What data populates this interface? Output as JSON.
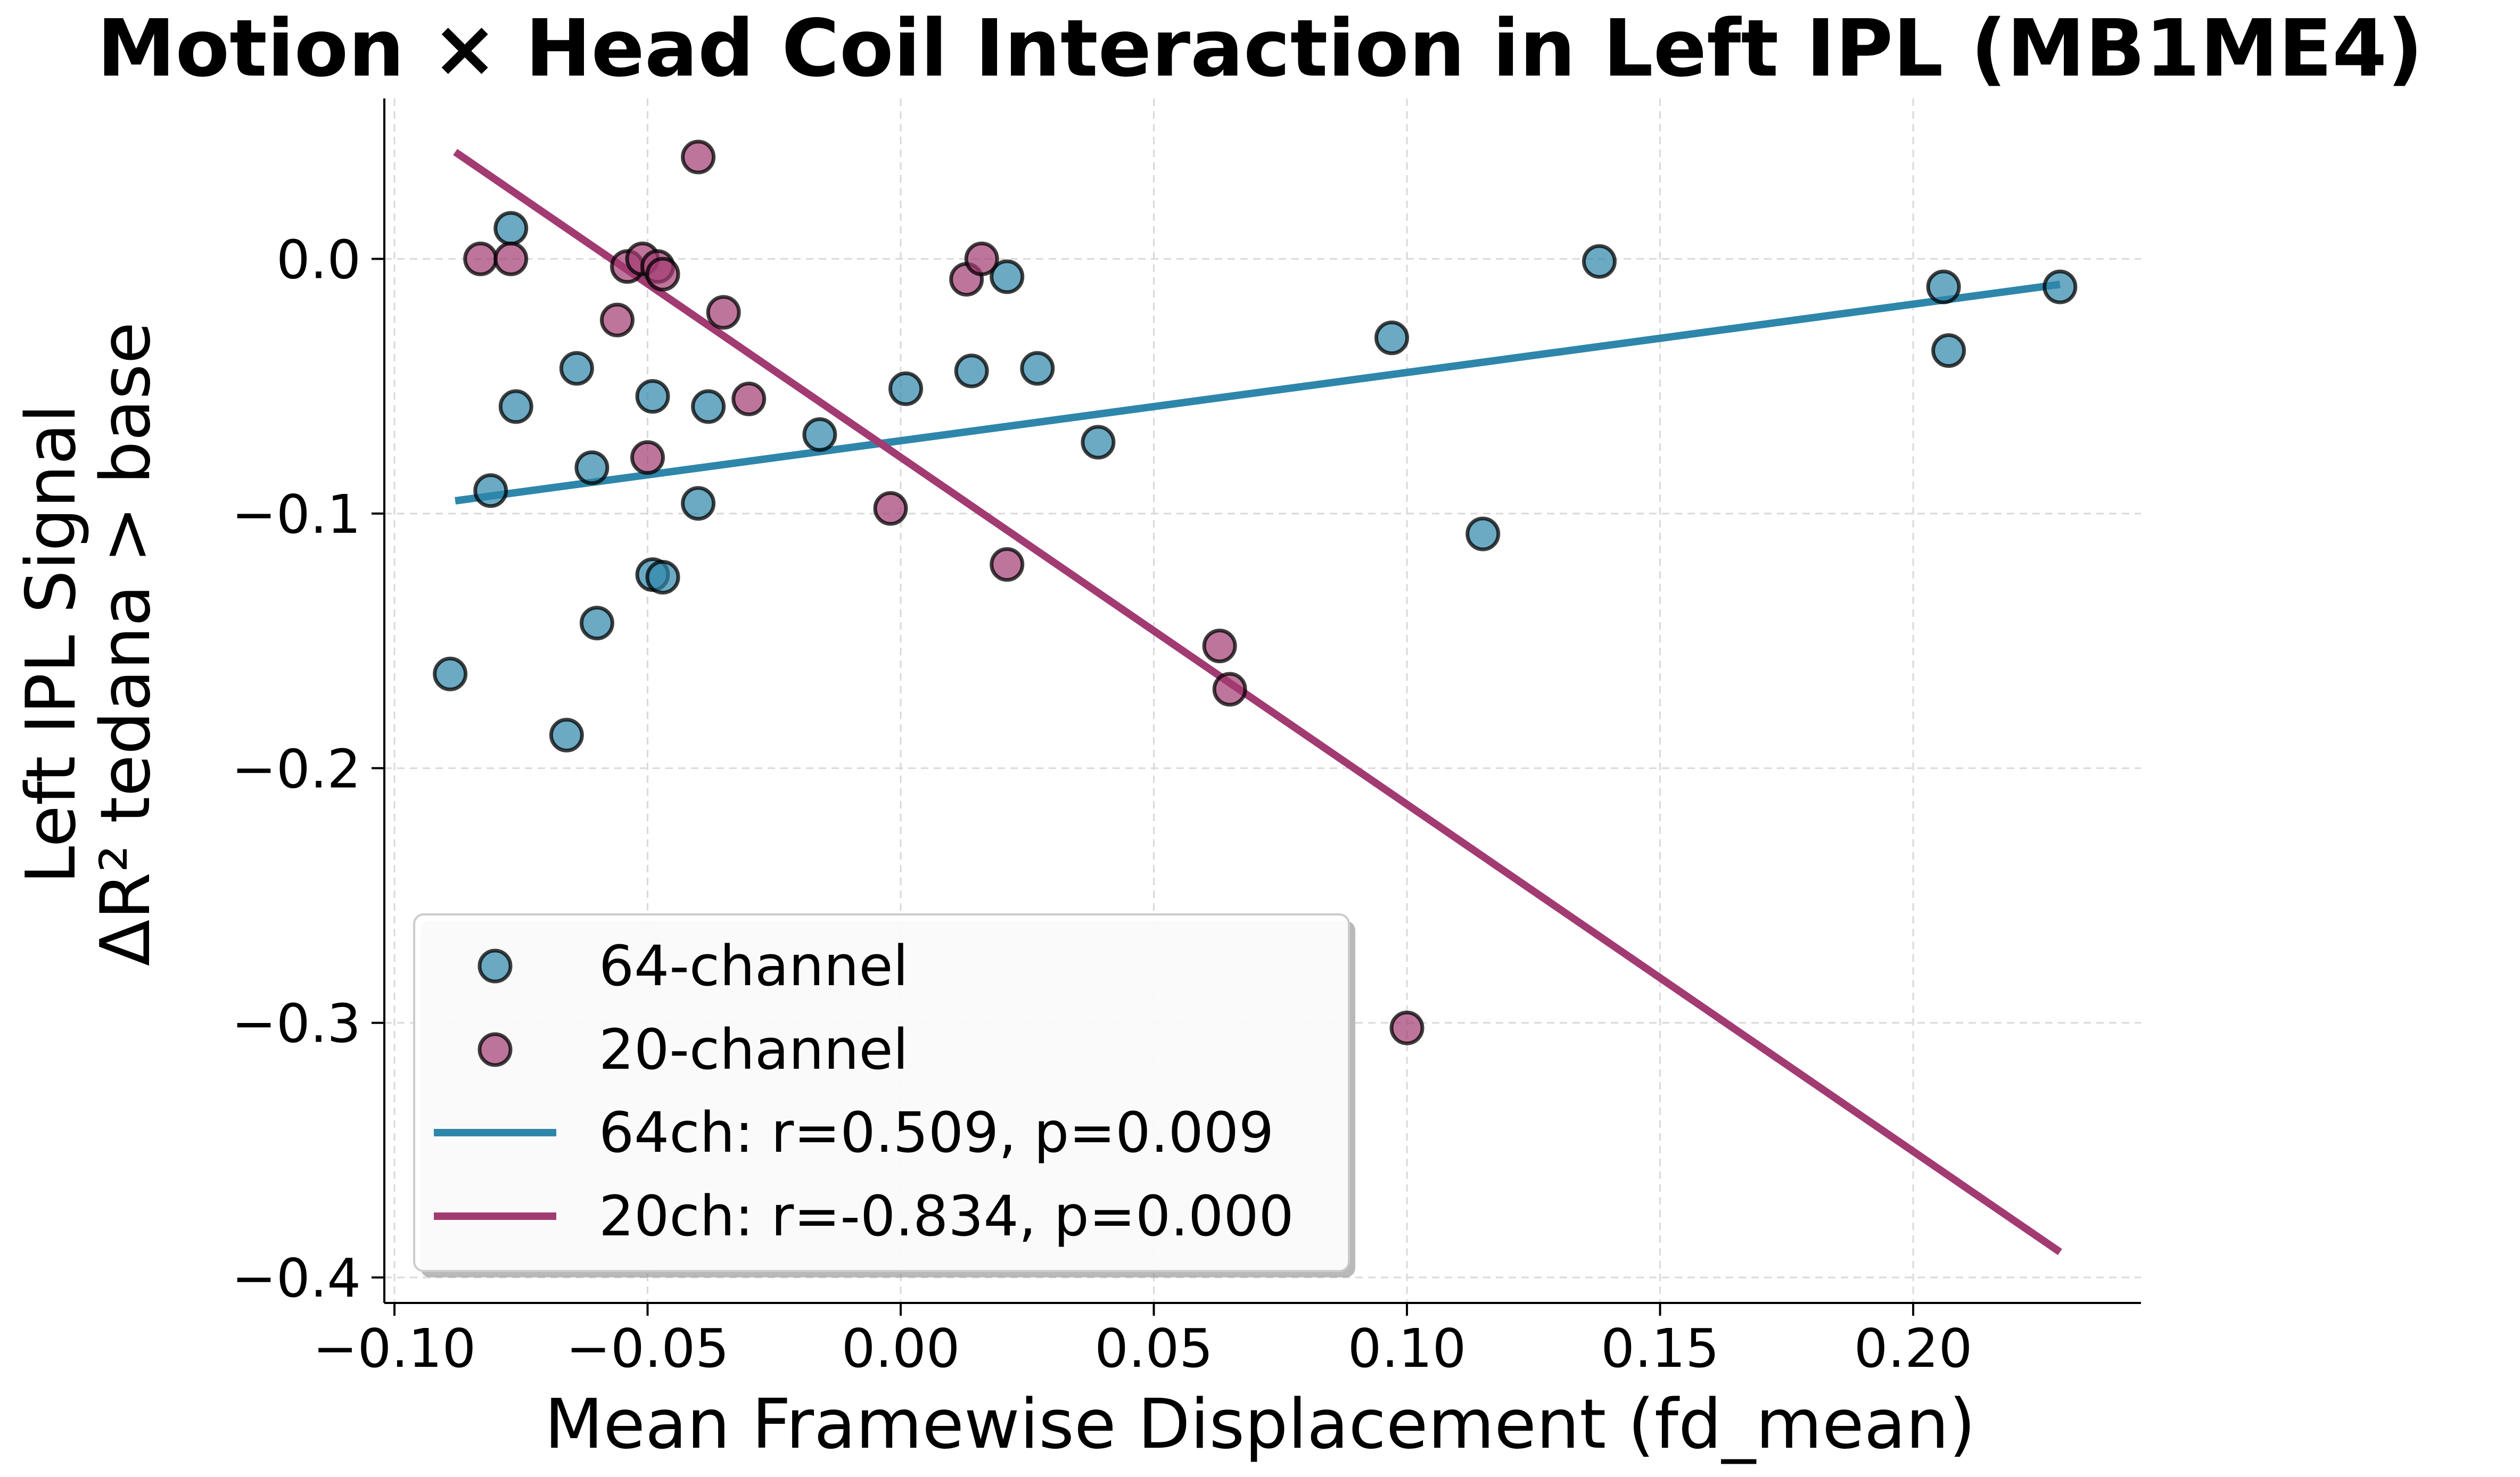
{
  "chart_data": {
    "type": "scatter",
    "title": "Motion × Head Coil Interaction in Left IPL (MB1ME4)",
    "xlabel": "Mean Framewise Displacement (fd_mean)",
    "ylabel_line1": "Left IPL Signal",
    "ylabel_line2": "ΔR² tedana > base",
    "xlim": [
      -0.102,
      0.245
    ],
    "ylim": [
      -0.41,
      0.063
    ],
    "x_ticks": [
      -0.1,
      -0.05,
      0.0,
      0.05,
      0.1,
      0.15,
      0.2
    ],
    "x_tick_labels": [
      "−0.10",
      "−0.05",
      "0.00",
      "0.05",
      "0.10",
      "0.15",
      "0.20"
    ],
    "y_ticks": [
      0.0,
      -0.1,
      -0.2,
      -0.3,
      -0.4
    ],
    "y_tick_labels": [
      "0.0",
      "−0.1",
      "−0.2",
      "−0.3",
      "−0.4"
    ],
    "grid": true,
    "legend_position": "lower-left",
    "series": [
      {
        "name": "64-channel",
        "color": "#2e86ab",
        "points": [
          [
            -0.077,
            0.012
          ],
          [
            -0.089,
            -0.163
          ],
          [
            -0.081,
            -0.091
          ],
          [
            -0.076,
            -0.058
          ],
          [
            -0.064,
            -0.043
          ],
          [
            -0.061,
            -0.082
          ],
          [
            -0.06,
            -0.143
          ],
          [
            -0.066,
            -0.187
          ],
          [
            -0.049,
            -0.054
          ],
          [
            -0.049,
            -0.124
          ],
          [
            -0.047,
            -0.125
          ],
          [
            -0.04,
            -0.096
          ],
          [
            -0.038,
            -0.058
          ],
          [
            -0.016,
            -0.069
          ],
          [
            0.001,
            -0.051
          ],
          [
            0.014,
            -0.044
          ],
          [
            0.021,
            -0.007
          ],
          [
            0.027,
            -0.043
          ],
          [
            0.039,
            -0.072
          ],
          [
            0.097,
            -0.031
          ],
          [
            0.115,
            -0.108
          ],
          [
            0.138,
            -0.001
          ],
          [
            0.206,
            -0.011
          ],
          [
            0.207,
            -0.036
          ],
          [
            0.229,
            -0.011
          ]
        ]
      },
      {
        "name": "20-channel",
        "color": "#a23b72",
        "points": [
          [
            -0.083,
            0.0
          ],
          [
            -0.077,
            0.0
          ],
          [
            -0.056,
            -0.024
          ],
          [
            -0.054,
            -0.003
          ],
          [
            -0.051,
            0.0
          ],
          [
            -0.05,
            -0.078
          ],
          [
            -0.048,
            -0.003
          ],
          [
            -0.047,
            -0.006
          ],
          [
            -0.04,
            0.04
          ],
          [
            -0.035,
            -0.021
          ],
          [
            -0.03,
            -0.055
          ],
          [
            -0.002,
            -0.098
          ],
          [
            0.013,
            -0.008
          ],
          [
            0.016,
            0.0
          ],
          [
            0.021,
            -0.12
          ],
          [
            0.063,
            -0.152
          ],
          [
            0.065,
            -0.169
          ],
          [
            0.1,
            -0.302
          ]
        ]
      }
    ],
    "fit_lines": [
      {
        "name": "64ch: r=0.509, p=0.009",
        "color": "#2e86ab",
        "x": [
          -0.088,
          0.229
        ],
        "y": [
          -0.095,
          -0.01
        ]
      },
      {
        "name": "20ch: r=-0.834, p=0.000",
        "color": "#a23b72",
        "x": [
          -0.088,
          0.229
        ],
        "y": [
          0.042,
          -0.39
        ]
      }
    ]
  }
}
